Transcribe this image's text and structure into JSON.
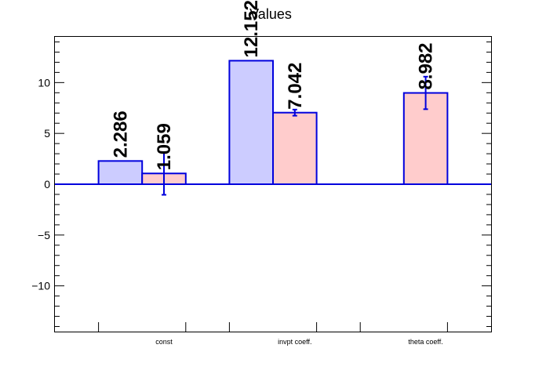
{
  "chart_data": {
    "type": "bar",
    "title": "Values",
    "categories": [
      "const",
      "invpt coeff.",
      "theta coeff."
    ],
    "ylim": [
      -14.5,
      14.5
    ],
    "yticks": [
      -10,
      -5,
      0,
      5,
      10
    ],
    "ytick_labels": [
      "−10",
      "−5",
      "0",
      "5",
      "10"
    ],
    "series": [
      {
        "fill": "#ccccff",
        "stroke": "#0000dd",
        "values": [
          2.286,
          12.152,
          null
        ],
        "errors": [
          0,
          0,
          null
        ],
        "labels": [
          "2.286",
          "12.152",
          ""
        ]
      },
      {
        "fill": "#ffcccc",
        "stroke": "#0000dd",
        "values": [
          1.059,
          7.042,
          8.982
        ],
        "errors": [
          2.1,
          0.3,
          1.6
        ],
        "labels": [
          "1.059",
          "7.042",
          "8.982"
        ]
      }
    ],
    "grid": false,
    "legend": "none"
  }
}
